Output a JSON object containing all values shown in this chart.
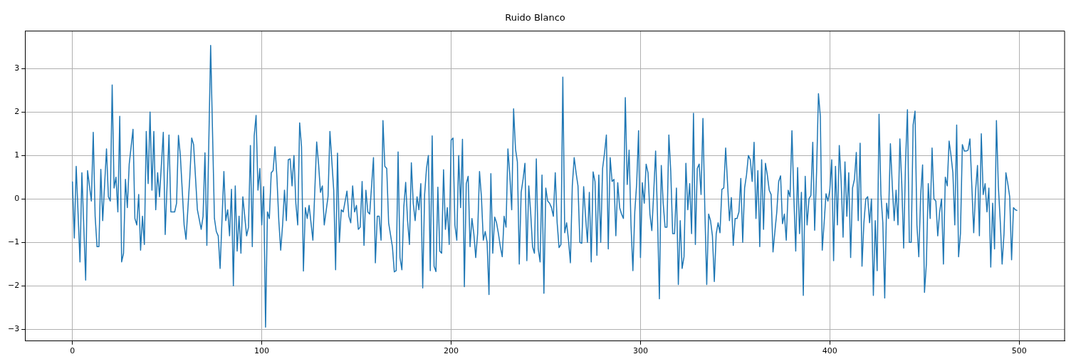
{
  "chart_data": {
    "type": "line",
    "title": "Ruido Blanco",
    "x": [
      0,
      1,
      2,
      4,
      5,
      7,
      8,
      10,
      11,
      12,
      13,
      14,
      15,
      16,
      18,
      19,
      20,
      21,
      22,
      23,
      24,
      25,
      26,
      27,
      28,
      29,
      30,
      32,
      33,
      34,
      35,
      36,
      37,
      38,
      39,
      40,
      41,
      42,
      43,
      44,
      45,
      46,
      48,
      49,
      51,
      52,
      54,
      55,
      56,
      57,
      59,
      60,
      62,
      63,
      64,
      66,
      68,
      69,
      70,
      71,
      73,
      75,
      76,
      77,
      78,
      80,
      81,
      82,
      83,
      84,
      85,
      86,
      87,
      88,
      89,
      90,
      92,
      93,
      94,
      95,
      96,
      97,
      98,
      99,
      100,
      101,
      102,
      103,
      104,
      105,
      106,
      107,
      108,
      109,
      110,
      111,
      112,
      113,
      114,
      115,
      116,
      117,
      118,
      119,
      120,
      121,
      122,
      123,
      124,
      125,
      127,
      129,
      130,
      131,
      132,
      133,
      135,
      136,
      138,
      139,
      140,
      141,
      142,
      143,
      145,
      146,
      147,
      148,
      149,
      150,
      151,
      152,
      153,
      154,
      155,
      156,
      157,
      159,
      160,
      161,
      162,
      163,
      164,
      165,
      166,
      167,
      169,
      170,
      171,
      172,
      173,
      174,
      175,
      176,
      177,
      178,
      179,
      180,
      181,
      182,
      183,
      184,
      185,
      186,
      187,
      188,
      189,
      190,
      191,
      192,
      193,
      194,
      195,
      196,
      197,
      198,
      199,
      200,
      201,
      202,
      203,
      204,
      205,
      206,
      207,
      208,
      209,
      210,
      211,
      212,
      213,
      214,
      215,
      216,
      217,
      218,
      219,
      220,
      221,
      222,
      223,
      224,
      225,
      226,
      227,
      228,
      229,
      230,
      231,
      232,
      233,
      234,
      235,
      236,
      237,
      238,
      239,
      240,
      241,
      242,
      243,
      244,
      245,
      246,
      247,
      248,
      249,
      250,
      251,
      252,
      253,
      254,
      255,
      256,
      257,
      258,
      259,
      260,
      261,
      262,
      263,
      264,
      265,
      266,
      267,
      268,
      269,
      270,
      271,
      272,
      273,
      274,
      275,
      276,
      277,
      278,
      279,
      280,
      281,
      282,
      283,
      284,
      285,
      286,
      287,
      288,
      289,
      290,
      291,
      292,
      293,
      294,
      295,
      296,
      297,
      298,
      299,
      300,
      301,
      302,
      303,
      304,
      305,
      306,
      307,
      308,
      309,
      310,
      311,
      312,
      313,
      314,
      315,
      316,
      317,
      318,
      319,
      320,
      321,
      322,
      323,
      324,
      325,
      326,
      327,
      328,
      329,
      330,
      331,
      332,
      333,
      334,
      335,
      336,
      337,
      338,
      339,
      340,
      341,
      342,
      343,
      344,
      345,
      346,
      347,
      348,
      349,
      350,
      351,
      352,
      353,
      354,
      355,
      356,
      357,
      358,
      359,
      360,
      361,
      362,
      363,
      364,
      365,
      366,
      367,
      368,
      369,
      370,
      371,
      372,
      373,
      374,
      375,
      376,
      377,
      378,
      379,
      380,
      381,
      382,
      383,
      384,
      385,
      386,
      387,
      388,
      389,
      390,
      391,
      392,
      393,
      394,
      395,
      396,
      397,
      398,
      399,
      400,
      401,
      402,
      403,
      404,
      405,
      406,
      407,
      408,
      409,
      410,
      411,
      412,
      413,
      414,
      415,
      416,
      417,
      418,
      419,
      420,
      421,
      422,
      423,
      424,
      425,
      426,
      427,
      428,
      429,
      430,
      431,
      432,
      433,
      434,
      435,
      436,
      437,
      438,
      439,
      440,
      441,
      442,
      443,
      444,
      445,
      446,
      447,
      448,
      449,
      450,
      451,
      452,
      453,
      454,
      455,
      456,
      457,
      458,
      459,
      460,
      461,
      462,
      463,
      464,
      465,
      466,
      467,
      468,
      469,
      470,
      471,
      472,
      473,
      474,
      475,
      476,
      477,
      478,
      479,
      480,
      481,
      482,
      483,
      484,
      485,
      486,
      487,
      488,
      489,
      490,
      491,
      492,
      493,
      494,
      495,
      496,
      497,
      498,
      499
    ],
    "series": [
      {
        "color": "#1f77b4",
        "values": [
          0.4,
          -0.9,
          0.75,
          -1.45,
          0.6,
          -1.87,
          0.65,
          -0.05,
          1.53,
          -0.4,
          -1.1,
          -1.1,
          0.68,
          -0.5,
          1.15,
          0.05,
          -0.05,
          2.62,
          0.25,
          0.5,
          -0.3,
          1.9,
          -1.45,
          -1.25,
          0.45,
          -0.2,
          0.8,
          1.6,
          -0.45,
          -0.6,
          0.1,
          -1.18,
          -0.4,
          -1.05,
          1.55,
          0.35,
          2.0,
          0.2,
          1.55,
          -0.25,
          0.6,
          0.05,
          1.53,
          -0.82,
          1.47,
          -0.3,
          -0.3,
          -0.1,
          1.46,
          1.0,
          -0.6,
          -0.93,
          0.5,
          1.4,
          1.25,
          -0.25,
          -0.7,
          -0.4,
          1.06,
          -1.07,
          3.53,
          -0.45,
          -0.75,
          -0.85,
          -1.6,
          0.63,
          -0.5,
          -0.25,
          -0.85,
          0.22,
          -2.0,
          0.3,
          -1.2,
          -0.4,
          -1.25,
          0.05,
          -0.85,
          -0.65,
          1.23,
          -1.1,
          1.45,
          1.92,
          0.2,
          0.7,
          -0.6,
          0.28,
          -2.95,
          -0.3,
          -0.45,
          0.6,
          0.65,
          1.2,
          0.5,
          -0.5,
          -1.18,
          -0.6,
          0.2,
          -0.5,
          0.9,
          0.92,
          0.3,
          1.0,
          -0.1,
          -0.6,
          1.75,
          1.2,
          -1.66,
          -0.2,
          -0.45,
          -0.15,
          -0.95,
          1.31,
          0.8,
          0.15,
          0.3,
          -0.6,
          0.05,
          1.55,
          0.2,
          -1.63,
          1.05,
          -1.0,
          -0.25,
          -0.3,
          0.18,
          -0.4,
          -0.55,
          0.3,
          -0.3,
          -0.15,
          -0.7,
          -0.65,
          0.4,
          -1.07,
          0.2,
          -0.3,
          -0.35,
          0.95,
          -1.47,
          -0.4,
          -0.4,
          -0.95,
          1.8,
          0.75,
          0.7,
          -0.55,
          -1.1,
          -1.68,
          -1.65,
          1.08,
          -1.35,
          -1.63,
          -0.2,
          0.38,
          -0.5,
          -1.05,
          0.83,
          -0.1,
          -0.5,
          0.05,
          -0.25,
          0.35,
          -2.05,
          0.1,
          0.7,
          1.0,
          -1.65,
          1.45,
          -1.55,
          -1.67,
          0.27,
          -1.2,
          -1.25,
          0.67,
          -0.7,
          -0.2,
          -1.05,
          1.35,
          1.4,
          -0.6,
          -0.95,
          1.0,
          -0.2,
          1.37,
          -2.02,
          0.35,
          0.52,
          -1.1,
          -0.45,
          -0.8,
          -1.35,
          -0.8,
          0.63,
          0.05,
          -0.95,
          -0.75,
          -1.0,
          -2.2,
          0.58,
          -1.25,
          -0.42,
          -0.55,
          -0.8,
          -1.1,
          -1.33,
          -0.4,
          -0.65,
          1.15,
          0.55,
          -0.25,
          2.07,
          1.15,
          0.85,
          -1.5,
          0.15,
          0.45,
          0.82,
          -1.42,
          0.3,
          -0.3,
          -1.1,
          -1.25,
          0.92,
          -1.15,
          -1.45,
          0.55,
          -2.17,
          0.25,
          -0.05,
          -0.1,
          -0.2,
          -0.4,
          0.6,
          -0.55,
          -1.12,
          -1.05,
          2.8,
          -0.78,
          -0.55,
          -0.95,
          -1.47,
          0.3,
          0.95,
          0.6,
          0.3,
          -1.0,
          -1.02,
          0.28,
          -0.4,
          -1.0,
          0.15,
          -1.45,
          0.62,
          0.4,
          -1.3,
          0.55,
          -1.0,
          0.7,
          1.05,
          1.47,
          -1.15,
          0.95,
          0.4,
          0.45,
          -0.85,
          0.37,
          -0.2,
          -0.35,
          -0.45,
          2.33,
          0.33,
          1.12,
          -0.6,
          -1.65,
          -0.3,
          0.35,
          1.57,
          -1.35,
          0.37,
          -0.1,
          0.8,
          0.6,
          -0.35,
          -0.73,
          0.15,
          1.1,
          -0.4,
          -2.3,
          0.77,
          -0.1,
          -0.65,
          -0.65,
          1.47,
          0.63,
          -0.8,
          -0.8,
          0.25,
          -1.97,
          -0.5,
          -1.6,
          -1.33,
          0.82,
          -0.25,
          0.35,
          -0.8,
          1.97,
          -1.05,
          0.7,
          0.8,
          0.1,
          1.85,
          -0.25,
          -1.97,
          -0.35,
          -0.5,
          -0.85,
          -1.9,
          -0.8,
          -0.55,
          -0.78,
          0.22,
          0.25,
          1.17,
          0.35,
          -0.5,
          0.03,
          -1.07,
          -0.45,
          -0.45,
          -0.3,
          0.47,
          -1.0,
          0.25,
          0.55,
          1.0,
          0.9,
          0.4,
          1.3,
          -0.45,
          0.65,
          -1.1,
          0.9,
          -0.7,
          0.82,
          0.55,
          0.2,
          0.1,
          -1.22,
          -0.75,
          -0.3,
          0.4,
          0.53,
          -0.57,
          -0.35,
          -0.95,
          0.2,
          0.05,
          1.57,
          0.05,
          -1.2,
          0.72,
          -0.8,
          0.15,
          -2.22,
          0.52,
          -0.6,
          0.0,
          0.08,
          1.3,
          -0.72,
          0.6,
          2.42,
          1.9,
          -1.18,
          -0.55,
          0.12,
          -0.05,
          0.2,
          0.9,
          -1.42,
          0.75,
          -0.6,
          1.23,
          0.4,
          -0.88,
          0.85,
          -0.4,
          0.6,
          -1.35,
          0.25,
          0.45,
          1.07,
          -0.5,
          1.28,
          -1.55,
          -0.55,
          0.0,
          0.05,
          -0.55,
          0.0,
          -2.22,
          -0.5,
          -1.65,
          1.95,
          0.1,
          -0.55,
          -2.28,
          -0.1,
          -0.45,
          1.27,
          0.3,
          -0.5,
          0.2,
          -0.6,
          1.38,
          0.35,
          -1.13,
          0.85,
          2.05,
          -1.0,
          -1.0,
          1.7,
          2.02,
          -0.6,
          -1.33,
          0.1,
          0.78,
          -2.15,
          -1.5,
          0.35,
          -0.45,
          1.17,
          0.0,
          -0.05,
          -0.85,
          -0.3,
          0.0,
          -1.5,
          0.5,
          0.3,
          1.33,
          1.0,
          0.6,
          -0.6,
          1.7,
          -1.33,
          -0.8,
          1.25,
          1.1,
          1.1,
          1.12,
          1.38,
          0.3,
          -0.78,
          0.2,
          0.77,
          -0.85,
          1.5,
          0.1,
          0.35,
          -0.3,
          0.25,
          -1.57,
          -0.1,
          -1.15,
          1.8,
          0.3,
          -0.5,
          -1.5,
          -0.8,
          0.6,
          0.35,
          0.05,
          -1.4,
          -0.2,
          -0.25,
          -0.27
        ]
      }
    ],
    "xlim": [
      -25,
      524
    ],
    "xticks": [
      0,
      100,
      200,
      300,
      400,
      500
    ],
    "ylim": [
      -3.27,
      3.86
    ],
    "yticks": [
      -3,
      -2,
      -1,
      0,
      1,
      2,
      3
    ],
    "grid": true,
    "legend": false,
    "marker": "none",
    "line_style": "solid"
  }
}
